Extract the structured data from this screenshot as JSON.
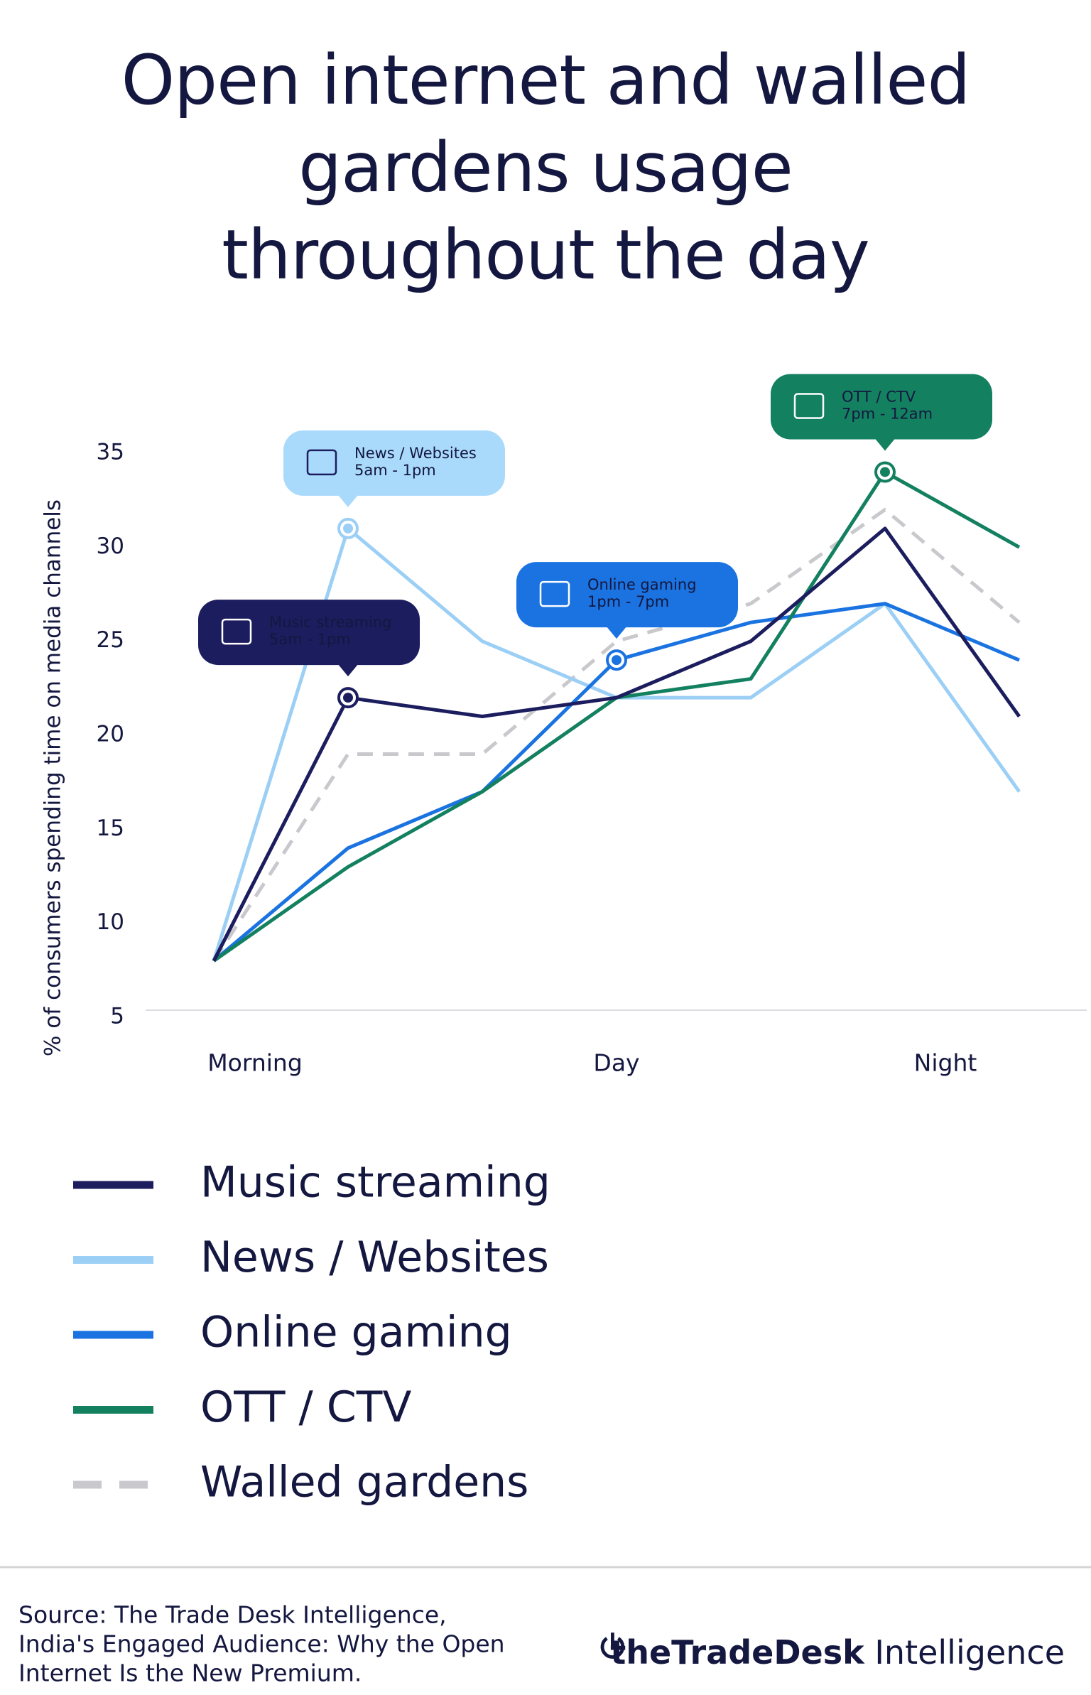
{
  "chart_data": {
    "type": "line",
    "title": "Open internet and walled gardens usage throughout the day",
    "y_label": "% of consumers spending time on media channels",
    "categories": [
      "Morning",
      null,
      null,
      "Day",
      null,
      null,
      "Night"
    ],
    "ylim": [
      5,
      35
    ],
    "yticks": [
      5,
      10,
      15,
      20,
      25,
      30,
      35
    ],
    "grid": false,
    "legend": "bottom",
    "series": [
      {
        "name": "Music streaming",
        "color": "#1c1d5e",
        "dashed": false,
        "values": [
          8,
          22,
          21,
          22,
          25,
          31,
          21
        ],
        "callout": {
          "label": "Music streaming",
          "time": "5am - 1pm",
          "fill": "#1c1d5e",
          "text": "#ffffff"
        }
      },
      {
        "name": "News / Websites",
        "color": "#9ccff5",
        "dashed": false,
        "values": [
          8,
          31,
          25,
          22,
          22,
          27,
          17
        ],
        "callout": {
          "label": "News / Websites",
          "time": "5am - 1pm",
          "fill": "#a9dafb",
          "text": "#1c1d5e"
        }
      },
      {
        "name": "Online gaming",
        "color": "#1a73e0",
        "dashed": false,
        "values": [
          8,
          14,
          17,
          24,
          26,
          27,
          24
        ],
        "callout": {
          "label": "Online gaming",
          "time": "1pm - 7pm",
          "fill": "#1a73e0",
          "text": "#ffffff"
        }
      },
      {
        "name": "OTT / CTV",
        "color": "#138060",
        "dashed": false,
        "values": [
          8,
          13,
          17,
          22,
          23,
          34,
          30
        ],
        "callout": {
          "label": "OTT / CTV",
          "time": "7pm - 12am",
          "fill": "#138060",
          "text": "#ffffff"
        }
      },
      {
        "name": "Walled gardens",
        "color": "#c9c9cd",
        "dashed": true,
        "values": [
          8,
          19,
          19,
          25,
          27,
          32,
          26
        ]
      }
    ],
    "source": [
      "Source: The Trade Desk Intelligence,",
      "India's Engaged Audience: Why the Open",
      "Internet Is the New Premium."
    ],
    "logo": {
      "brand": "theTradeDesk",
      "product": "Intelligence"
    }
  }
}
